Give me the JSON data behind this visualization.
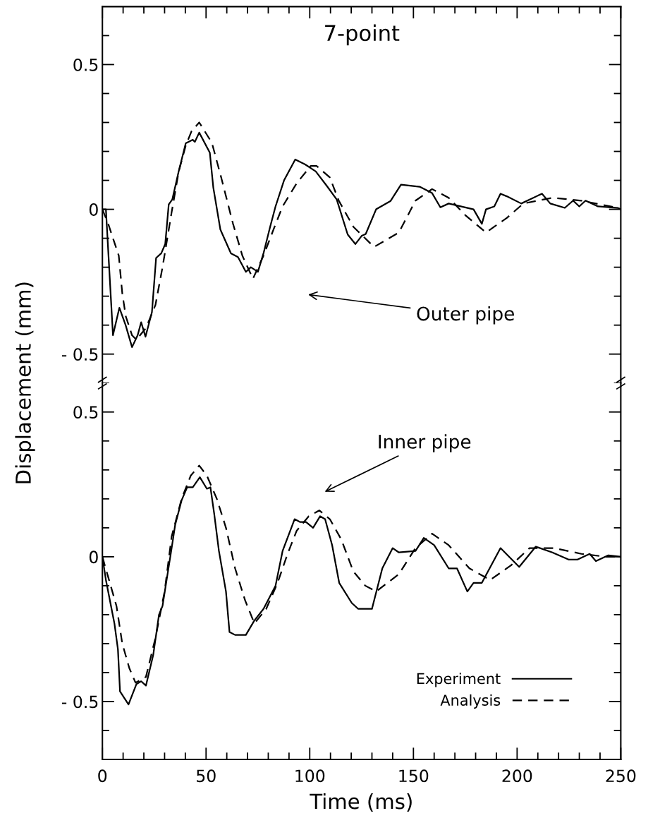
{
  "chart_data": [
    {
      "type": "line",
      "title": "7-point",
      "ylabel": "Displacement (mm)",
      "xlim": [
        0,
        250
      ],
      "ylim": [
        -0.6,
        0.7
      ],
      "xticks": [
        0,
        {
          "value": 10,
          "label": null
        },
        {
          "value": 20,
          "label": null
        },
        {
          "value": 30,
          "label": null
        },
        {
          "value": 40,
          "label": null
        },
        50,
        {
          "value": 60,
          "label": null
        },
        {
          "value": 70,
          "label": null
        },
        {
          "value": 80,
          "label": null
        },
        {
          "value": 90,
          "label": null
        },
        100,
        {
          "value": 110,
          "label": null
        },
        {
          "value": 120,
          "label": null
        },
        {
          "value": 130,
          "label": null
        },
        {
          "value": 140,
          "label": null
        },
        150,
        {
          "value": 160,
          "label": null
        },
        {
          "value": 170,
          "label": null
        },
        {
          "value": 180,
          "label": null
        },
        {
          "value": 190,
          "label": null
        },
        200,
        {
          "value": 210,
          "label": null
        },
        {
          "value": 220,
          "label": null
        },
        {
          "value": 230,
          "label": null
        },
        {
          "value": 240,
          "label": null
        },
        250
      ],
      "yticks": [
        {
          "value": -0.6,
          "label": null
        },
        {
          "value": -0.5,
          "label": "- 0.5"
        },
        {
          "value": -0.4,
          "label": null
        },
        {
          "value": -0.3,
          "label": null
        },
        {
          "value": -0.2,
          "label": null
        },
        {
          "value": -0.1,
          "label": null
        },
        0,
        {
          "value": 0.1,
          "label": null
        },
        {
          "value": 0.2,
          "label": null
        },
        {
          "value": 0.3,
          "label": null
        },
        {
          "value": 0.4,
          "label": null
        },
        0.5,
        {
          "value": 0.6,
          "label": null
        }
      ],
      "tick_labels": "y",
      "grid": false,
      "marker": "none",
      "annotations": [
        "Outer pipe"
      ],
      "series": [
        {
          "color": "#000000",
          "line_style": "solid",
          "x": [
            0,
            1.7,
            5.1,
            8.2,
            11.2,
            14.3,
            17,
            18.7,
            20.8,
            23.9,
            25.9,
            28.4,
            30.3,
            32,
            33.7,
            36.8,
            40.2,
            43.6,
            44.6,
            46.7,
            51.8,
            53.5,
            56.9,
            62,
            65.4,
            69.2,
            71.6,
            75,
            77.7,
            80.8,
            83.5,
            87.6,
            93,
            97.8,
            102.9,
            108,
            113,
            118.3,
            122,
            125,
            127,
            132,
            139,
            144,
            153,
            159,
            163,
            167,
            179,
            183,
            185,
            189,
            192,
            195,
            202,
            212,
            216,
            223,
            227,
            230,
            233,
            239,
            248.5,
            250
          ],
          "values": [
            0,
            0,
            -0.435,
            -0.34,
            -0.4,
            -0.476,
            -0.435,
            -0.39,
            -0.44,
            -0.355,
            -0.168,
            -0.152,
            -0.12,
            0.017,
            0.034,
            0.131,
            0.228,
            0.24,
            0.233,
            0.265,
            0.196,
            0.075,
            -0.07,
            -0.152,
            -0.165,
            -0.216,
            -0.2,
            -0.216,
            -0.152,
            -0.063,
            0.01,
            0.1,
            0.172,
            0.155,
            0.131,
            0.083,
            0.034,
            -0.087,
            -0.12,
            -0.092,
            -0.085,
            0,
            0.029,
            0.085,
            0.078,
            0.056,
            0.007,
            0.02,
            0,
            -0.05,
            0,
            0.01,
            0.054,
            0.045,
            0.02,
            0.054,
            0.02,
            0.005,
            0.03,
            0.01,
            0.03,
            0.01,
            0.005,
            0
          ]
        },
        {
          "color": "#000000",
          "line_style": "dashed",
          "x": [
            0,
            2.8,
            7.9,
            9.6,
            11.3,
            14.3,
            16.4,
            21,
            25.6,
            29,
            33.4,
            36.8,
            40.2,
            43,
            46.7,
            52.8,
            57.3,
            63,
            67.5,
            72.6,
            77.7,
            82.5,
            86.9,
            93.7,
            100.5,
            103.3,
            109.7,
            114,
            121,
            131,
            143,
            151,
            159,
            167,
            175,
            185,
            195,
            203,
            217,
            231,
            248.5,
            250
          ],
          "values": [
            0,
            -0.05,
            -0.16,
            -0.29,
            -0.37,
            -0.435,
            -0.45,
            -0.41,
            -0.33,
            -0.2,
            -0.01,
            0.13,
            0.22,
            0.27,
            0.3,
            0.23,
            0.11,
            -0.05,
            -0.16,
            -0.24,
            -0.16,
            -0.07,
            0.01,
            0.09,
            0.15,
            0.15,
            0.11,
            0.03,
            -0.06,
            -0.13,
            -0.08,
            0.03,
            0.07,
            0.04,
            -0.02,
            -0.08,
            -0.03,
            0.02,
            0.04,
            0.03,
            0.005,
            0
          ]
        }
      ]
    },
    {
      "type": "line",
      "xlabel": "Time (ms)",
      "xlim": [
        0,
        250
      ],
      "ylim": [
        -0.7,
        0.6
      ],
      "xticks": [
        0,
        {
          "value": 10,
          "label": null
        },
        {
          "value": 20,
          "label": null
        },
        {
          "value": 30,
          "label": null
        },
        {
          "value": 40,
          "label": null
        },
        50,
        {
          "value": 60,
          "label": null
        },
        {
          "value": 70,
          "label": null
        },
        {
          "value": 80,
          "label": null
        },
        {
          "value": 90,
          "label": null
        },
        100,
        {
          "value": 110,
          "label": null
        },
        {
          "value": 120,
          "label": null
        },
        {
          "value": 130,
          "label": null
        },
        {
          "value": 140,
          "label": null
        },
        150,
        {
          "value": 160,
          "label": null
        },
        {
          "value": 170,
          "label": null
        },
        {
          "value": 180,
          "label": null
        },
        {
          "value": 190,
          "label": null
        },
        200,
        {
          "value": 210,
          "label": null
        },
        {
          "value": 220,
          "label": null
        },
        {
          "value": 230,
          "label": null
        },
        {
          "value": 240,
          "label": null
        },
        250
      ],
      "yticks": [
        {
          "value": -0.6,
          "label": null
        },
        {
          "value": -0.5,
          "label": "- 0.5"
        },
        {
          "value": -0.4,
          "label": null
        },
        {
          "value": -0.3,
          "label": null
        },
        {
          "value": -0.2,
          "label": null
        },
        {
          "value": -0.1,
          "label": null
        },
        0,
        {
          "value": 0.1,
          "label": null
        },
        {
          "value": 0.2,
          "label": null
        },
        {
          "value": 0.3,
          "label": null
        },
        {
          "value": 0.4,
          "label": null
        },
        0.5
      ],
      "grid": false,
      "marker": "none",
      "legend": "bottom right",
      "annotations": [
        "Inner pipe"
      ],
      "series": [
        {
          "name": "Experiment",
          "color": "#000000",
          "line_style": "solid",
          "x": [
            0,
            1.7,
            5.8,
            7.5,
            8.5,
            12.6,
            16.4,
            18.7,
            21,
            24.5,
            27.3,
            29,
            33.4,
            35.1,
            38.2,
            40.9,
            43.6,
            47,
            50.4,
            52.1,
            53.9,
            56.2,
            59.6,
            61.3,
            64,
            69.2,
            73.3,
            77.7,
            83.5,
            86.9,
            92.7,
            95.4,
            98.2,
            101.6,
            105,
            107.4,
            110.8,
            114.2,
            120.3,
            123.4,
            130,
            135,
            140,
            143,
            151,
            155,
            160,
            167,
            171,
            176,
            179,
            183,
            192,
            201,
            209,
            217,
            225,
            229,
            235,
            238,
            244,
            250
          ],
          "values": [
            0,
            -0.08,
            -0.23,
            -0.32,
            -0.465,
            -0.51,
            -0.44,
            -0.43,
            -0.445,
            -0.34,
            -0.2,
            -0.17,
            0.03,
            0.11,
            0.195,
            0.24,
            0.24,
            0.275,
            0.235,
            0.24,
            0.15,
            0.02,
            -0.12,
            -0.26,
            -0.27,
            -0.27,
            -0.22,
            -0.18,
            -0.1,
            0.02,
            0.13,
            0.12,
            0.12,
            0.1,
            0.14,
            0.13,
            0.04,
            -0.09,
            -0.16,
            -0.18,
            -0.18,
            -0.04,
            0.03,
            0.015,
            0.02,
            0.065,
            0.04,
            -0.04,
            -0.04,
            -0.12,
            -0.09,
            -0.09,
            0.03,
            -0.035,
            0.035,
            0.015,
            -0.01,
            -0.01,
            0.01,
            -0.015,
            0.005,
            0
          ]
        },
        {
          "name": "Analysis",
          "color": "#000000",
          "line_style": "dashed",
          "x": [
            0,
            2.8,
            6.8,
            9.6,
            13,
            16,
            21,
            25.6,
            30,
            33.4,
            38.2,
            42.6,
            46.7,
            50.4,
            55.2,
            59.6,
            64,
            68.8,
            73.3,
            79,
            84.5,
            89.3,
            93.7,
            99.5,
            104.6,
            109.7,
            115.2,
            121,
            126.8,
            132,
            143,
            151,
            159,
            167,
            177,
            187,
            197,
            206,
            218,
            231,
            243,
            250
          ],
          "values": [
            0,
            -0.07,
            -0.17,
            -0.3,
            -0.385,
            -0.435,
            -0.415,
            -0.28,
            -0.12,
            0.07,
            0.2,
            0.28,
            0.315,
            0.28,
            0.2,
            0.1,
            -0.04,
            -0.15,
            -0.23,
            -0.18,
            -0.09,
            0.01,
            0.09,
            0.14,
            0.16,
            0.13,
            0.06,
            -0.05,
            -0.1,
            -0.12,
            -0.06,
            0.03,
            0.08,
            0.04,
            -0.04,
            -0.08,
            -0.03,
            0.03,
            0.03,
            0.01,
            0,
            0
          ]
        }
      ]
    }
  ]
}
